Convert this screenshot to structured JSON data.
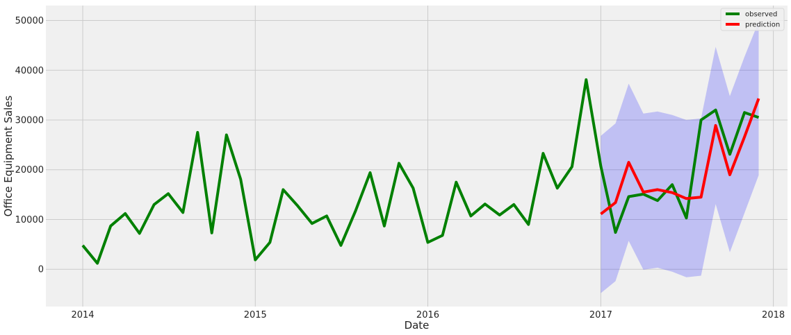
{
  "chart_data": {
    "type": "line",
    "title": "",
    "xlabel": "Date",
    "ylabel": "Office Equipment Sales",
    "xlim": [
      "2013-10-15",
      "2018-01-31"
    ],
    "ylim": [
      -7500,
      53000
    ],
    "x_ticks": [
      "2014",
      "2015",
      "2016",
      "2017",
      "2018"
    ],
    "y_ticks": [
      0,
      10000,
      20000,
      30000,
      40000,
      50000
    ],
    "y_tick_labels": [
      "0",
      "10000",
      "20000",
      "30000",
      "40000",
      "50000"
    ],
    "grid": true,
    "legend_position": "top-right",
    "background_color": "#f0f0f0",
    "grid_color": "#cbcbcb",
    "series": [
      {
        "name": "observed",
        "color": "#008000",
        "x": [
          "2014-01-01",
          "2014-02-01",
          "2014-03-01",
          "2014-04-01",
          "2014-05-01",
          "2014-06-01",
          "2014-07-01",
          "2014-08-01",
          "2014-09-01",
          "2014-10-01",
          "2014-11-01",
          "2014-12-01",
          "2015-01-01",
          "2015-02-01",
          "2015-03-01",
          "2015-04-01",
          "2015-05-01",
          "2015-06-01",
          "2015-07-01",
          "2015-08-01",
          "2015-09-01",
          "2015-10-01",
          "2015-11-01",
          "2015-12-01",
          "2016-01-01",
          "2016-02-01",
          "2016-03-01",
          "2016-04-01",
          "2016-05-01",
          "2016-06-01",
          "2016-07-01",
          "2016-08-01",
          "2016-09-01",
          "2016-10-01",
          "2016-11-01",
          "2016-12-01",
          "2017-01-01",
          "2017-02-01",
          "2017-03-01",
          "2017-04-01",
          "2017-05-01",
          "2017-06-01",
          "2017-07-01",
          "2017-08-01",
          "2017-09-01",
          "2017-10-01",
          "2017-11-01",
          "2017-12-01"
        ],
        "values": [
          4800,
          1200,
          8700,
          11200,
          7200,
          13000,
          15200,
          11400,
          27500,
          7300,
          27000,
          18100,
          1900,
          5400,
          16000,
          12700,
          9200,
          10700,
          4800,
          11700,
          19400,
          8700,
          21300,
          16300,
          5400,
          6800,
          17500,
          10700,
          13100,
          10900,
          13000,
          9000,
          23300,
          16300,
          20600,
          38100,
          20700,
          7400,
          14600,
          15100,
          13800,
          17000,
          10300,
          30000,
          32000,
          23100,
          31500,
          30500
        ]
      },
      {
        "name": "prediction",
        "color": "#ff0000",
        "x": [
          "2017-01-01",
          "2017-02-01",
          "2017-03-01",
          "2017-04-01",
          "2017-05-01",
          "2017-06-01",
          "2017-07-01",
          "2017-08-01",
          "2017-09-01",
          "2017-10-01",
          "2017-11-01",
          "2017-12-01"
        ],
        "values": [
          11100,
          13400,
          21500,
          15500,
          16000,
          15400,
          14200,
          14500,
          28900,
          19000,
          26600,
          34300
        ]
      }
    ],
    "confidence_interval": {
      "color": "#0000ff",
      "opacity": 0.2,
      "x": [
        "2017-01-01",
        "2017-02-01",
        "2017-03-01",
        "2017-04-01",
        "2017-05-01",
        "2017-06-01",
        "2017-07-01",
        "2017-08-01",
        "2017-09-01",
        "2017-10-01",
        "2017-11-01",
        "2017-12-01"
      ],
      "lower": [
        -4800,
        -2400,
        5700,
        -100,
        300,
        -500,
        -1600,
        -1300,
        13100,
        3400,
        11300,
        18900
      ],
      "upper": [
        26800,
        29300,
        37300,
        31300,
        31700,
        31000,
        30000,
        30300,
        44700,
        34800,
        42700,
        49800
      ]
    }
  }
}
